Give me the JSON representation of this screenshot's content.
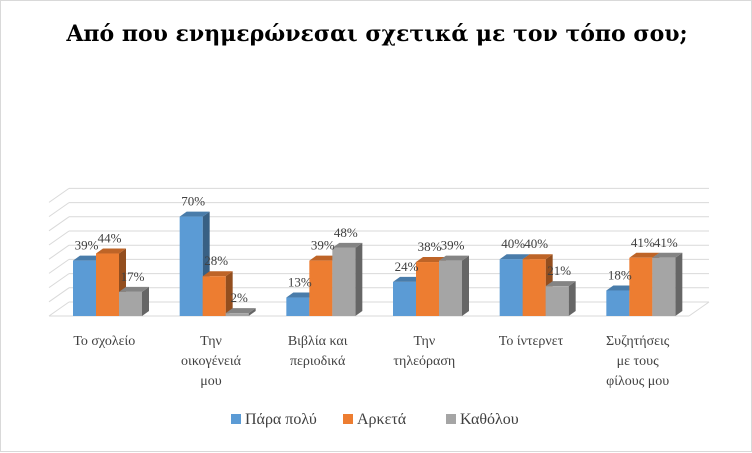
{
  "chart_data": {
    "type": "bar",
    "title": "Από που ενημερώνεσαι σχετικά με τον τόπο σου;",
    "categories": [
      [
        "Το σχολείο"
      ],
      [
        "Την",
        "οικογένειά",
        "μου"
      ],
      [
        "Βιβλία και",
        "περιοδικά"
      ],
      [
        "Την",
        "τηλεόραση"
      ],
      [
        "Το ίντερνετ"
      ],
      [
        "Συζητήσεις",
        "με τους",
        "φίλους μου"
      ]
    ],
    "series": [
      {
        "name": "Πάρα πολύ",
        "values": [
          39,
          70,
          13,
          24,
          40,
          18
        ],
        "color": "#5b9bd5"
      },
      {
        "name": "Αρκετά",
        "values": [
          44,
          28,
          39,
          38,
          40,
          41
        ],
        "color": "#ed7d31"
      },
      {
        "name": "Καθόλου",
        "values": [
          17,
          2,
          48,
          39,
          21,
          41
        ],
        "color": "#a5a5a5"
      }
    ],
    "value_suffix": "%",
    "ylim": [
      0,
      80
    ],
    "grid": true,
    "legend_position": "bottom",
    "chart_style": "3d-clustered-column"
  }
}
